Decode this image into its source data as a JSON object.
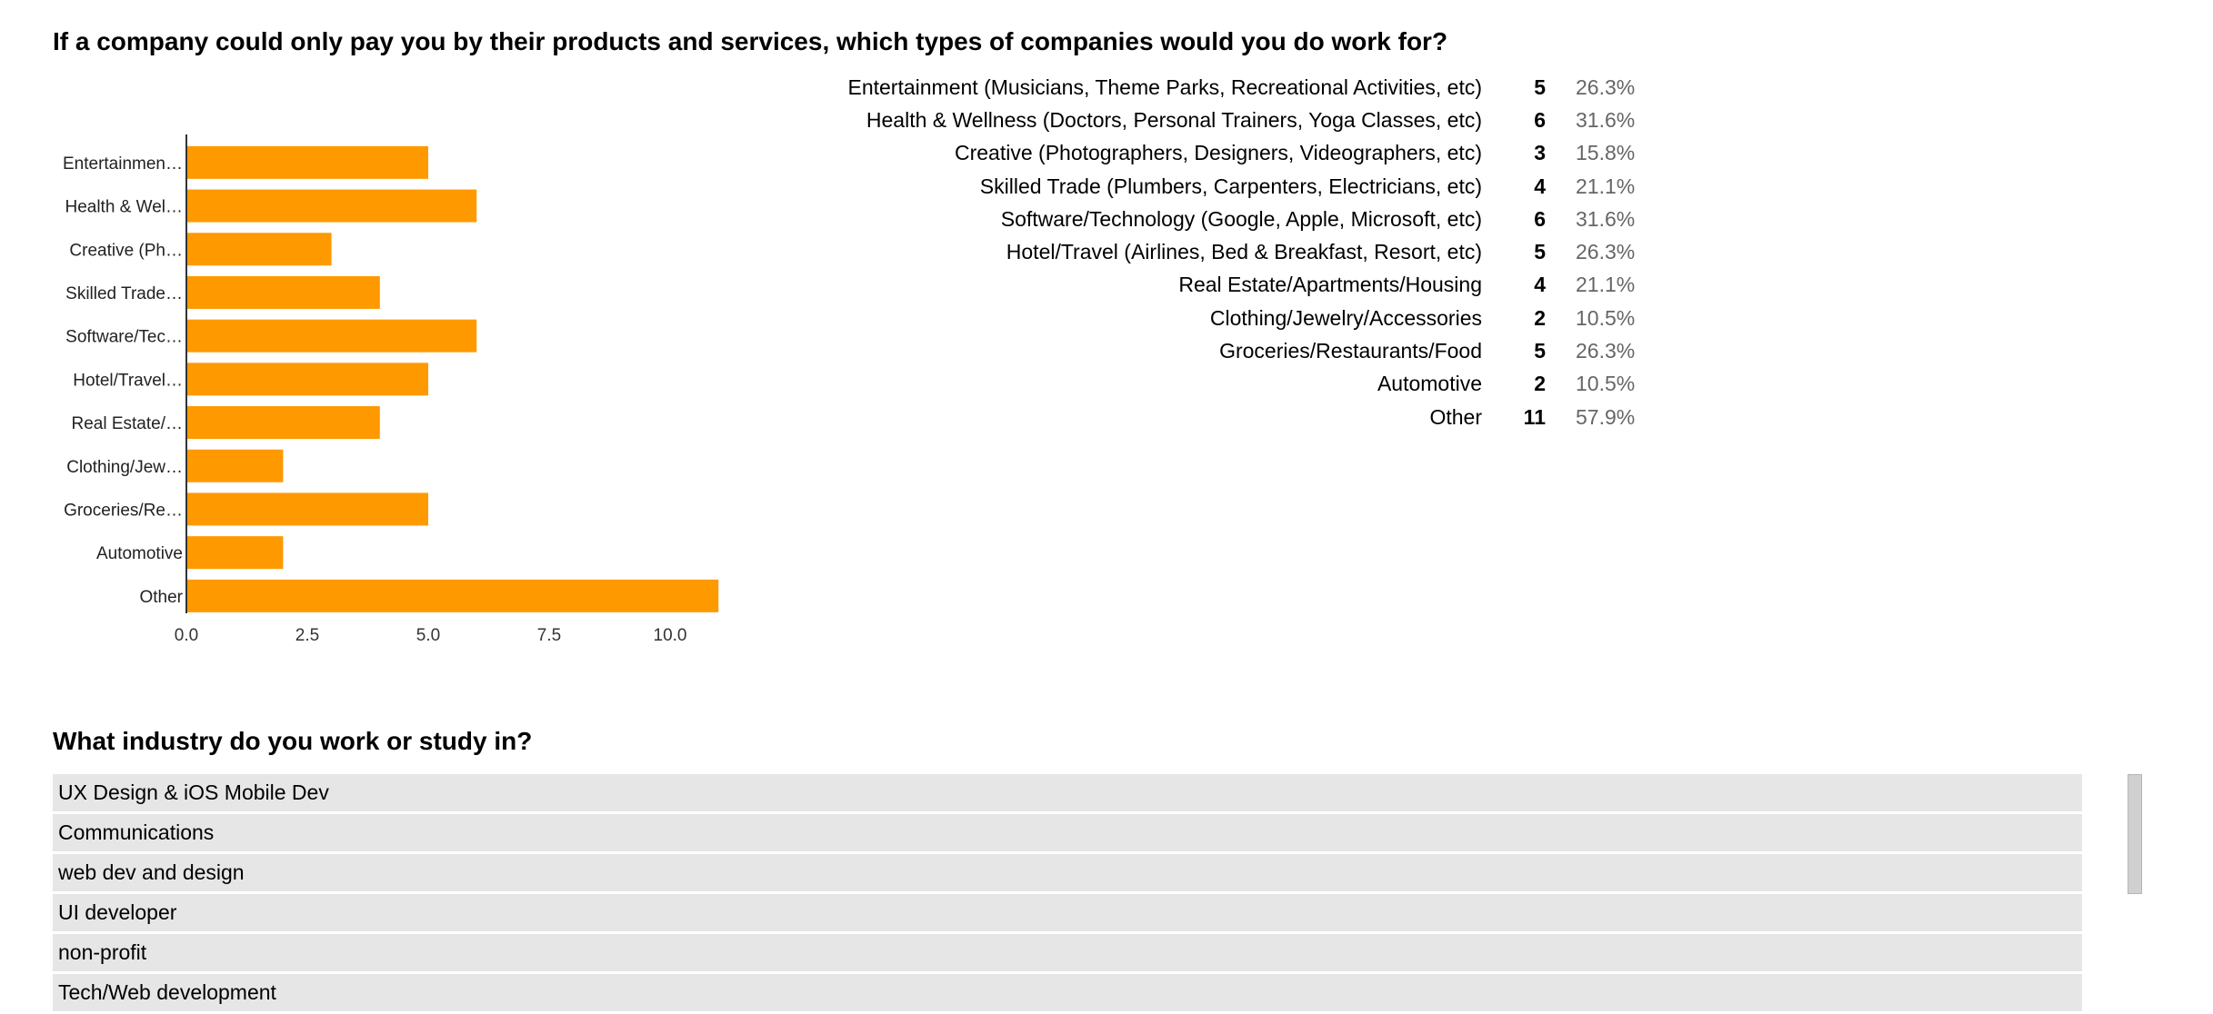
{
  "question1": {
    "title": "If a company could only pay you by their products and services, which types of companies would you do work for?",
    "rows": [
      {
        "label": "Entertainment (Musicians, Theme Parks, Recreational Activities, etc)",
        "count": "5",
        "percent": "26.3%"
      },
      {
        "label": "Health & Wellness (Doctors, Personal Trainers, Yoga Classes, etc)",
        "count": "6",
        "percent": "31.6%"
      },
      {
        "label": "Creative (Photographers, Designers, Videographers, etc)",
        "count": "3",
        "percent": "15.8%"
      },
      {
        "label": "Skilled Trade (Plumbers, Carpenters, Electricians, etc)",
        "count": "4",
        "percent": "21.1%"
      },
      {
        "label": "Software/Technology (Google, Apple, Microsoft, etc)",
        "count": "6",
        "percent": "31.6%"
      },
      {
        "label": "Hotel/Travel (Airlines, Bed & Breakfast, Resort, etc)",
        "count": "5",
        "percent": "26.3%"
      },
      {
        "label": "Real Estate/Apartments/Housing",
        "count": "4",
        "percent": "21.1%"
      },
      {
        "label": "Clothing/Jewelry/Accessories",
        "count": "2",
        "percent": "10.5%"
      },
      {
        "label": "Groceries/Restaurants/Food",
        "count": "5",
        "percent": "26.3%"
      },
      {
        "label": "Automotive",
        "count": "2",
        "percent": "10.5%"
      },
      {
        "label": "Other",
        "count": "11",
        "percent": "57.9%"
      }
    ]
  },
  "chart_data": {
    "type": "bar",
    "orientation": "horizontal",
    "categories": [
      "Entertainmen…",
      "Health & Wel…",
      "Creative (Ph…",
      "Skilled Trade…",
      "Software/Tec…",
      "Hotel/Travel…",
      "Real Estate/…",
      "Clothing/Jew…",
      "Groceries/Re…",
      "Automotive",
      "Other"
    ],
    "values": [
      5,
      6,
      3,
      4,
      6,
      5,
      4,
      2,
      5,
      2,
      11
    ],
    "xticks": [
      "0.0",
      "2.5",
      "5.0",
      "7.5",
      "10.0"
    ],
    "xlim": [
      0,
      11
    ],
    "title": "",
    "xlabel": "",
    "ylabel": "",
    "color": "#ff9900",
    "grid": false
  },
  "question2": {
    "title": "What industry do you work or study in?",
    "responses": [
      "UX Design & iOS Mobile Dev",
      "Communications",
      "web dev and design",
      "UI developer",
      "non-profit",
      "Tech/Web development"
    ]
  }
}
